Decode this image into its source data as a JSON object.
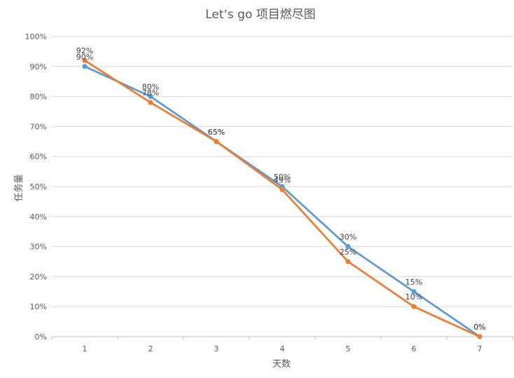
{
  "chart_data": {
    "type": "line",
    "title": "Let‘s go 项目燃尽图",
    "xlabel": "天数",
    "ylabel": "任务量",
    "x": [
      1,
      2,
      3,
      4,
      5,
      6,
      7
    ],
    "ylim": [
      0,
      100
    ],
    "yticks": [
      0,
      10,
      20,
      30,
      40,
      50,
      60,
      70,
      80,
      90,
      100
    ],
    "y_tick_labels": [
      "0%",
      "10%",
      "20%",
      "30%",
      "40%",
      "50%",
      "60%",
      "70%",
      "80%",
      "90%",
      "100%"
    ],
    "x_tick_labels": [
      "1",
      "2",
      "3",
      "4",
      "5",
      "6",
      "7"
    ],
    "grid": true,
    "series": [
      {
        "color": "#5b9bd5",
        "values": [
          90,
          80,
          65,
          50,
          30,
          15,
          0
        ],
        "labels": [
          "90%",
          "80%",
          "65%",
          "50%",
          "30%",
          "15%",
          "0%"
        ]
      },
      {
        "color": "#ed7d31",
        "values": [
          92,
          78,
          65,
          49,
          25,
          10,
          0
        ],
        "labels": [
          "92%",
          "78%",
          "65%",
          "49%",
          "25%",
          "10%",
          "0%"
        ]
      }
    ]
  }
}
